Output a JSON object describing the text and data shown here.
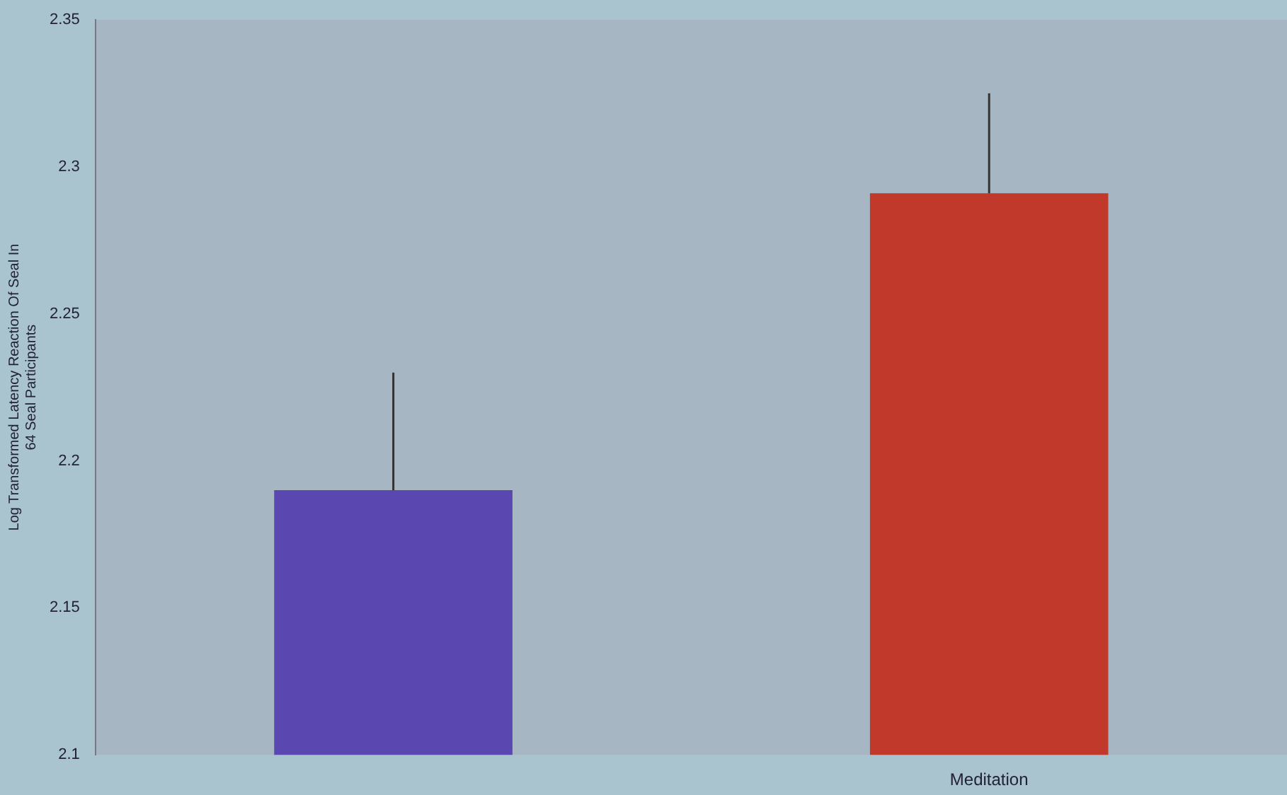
{
  "chart_data": {
    "type": "bar",
    "ylabel": "Log Transformed Latency Reaction Of Seal In\n64 Seal Participants",
    "categories": [
      null,
      "Meditation"
    ],
    "values": [
      2.19,
      2.291
    ],
    "colors": [
      "#5a48b0",
      "#c0392b"
    ],
    "errors": [
      [
        2.19,
        2.23
      ],
      [
        2.291,
        2.325
      ]
    ],
    "ylim": [
      2.1,
      2.35
    ],
    "yticks": [
      2.1,
      2.15,
      2.2,
      2.25,
      2.3,
      2.35
    ],
    "grid": false,
    "legend": false
  }
}
